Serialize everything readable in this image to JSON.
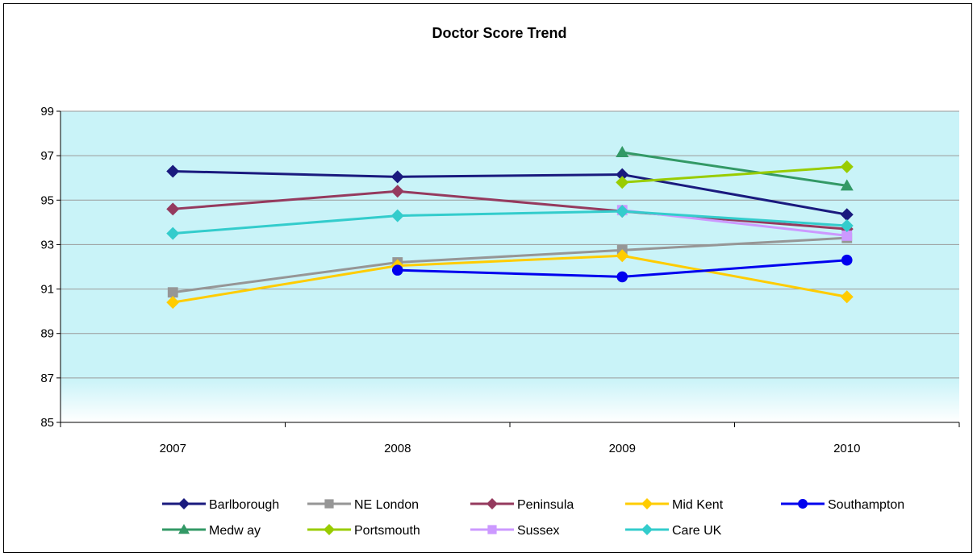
{
  "chart_data": {
    "type": "line",
    "title": "Doctor Score Trend",
    "xlabel": "",
    "ylabel": "",
    "categories": [
      "2007",
      "2008",
      "2009",
      "2010"
    ],
    "ylim": [
      85,
      99
    ],
    "yticks": [
      "85",
      "87",
      "89",
      "91",
      "93",
      "95",
      "97",
      "99"
    ],
    "grid": true,
    "legend_position": "bottom",
    "plot_background": "#c9f3f8",
    "series": [
      {
        "name": "Barlborough",
        "color": "#1a1a7e",
        "marker": "diamond",
        "values": [
          96.3,
          96.05,
          96.15,
          94.35
        ]
      },
      {
        "name": "NE London",
        "color": "#969696",
        "marker": "square",
        "values": [
          90.85,
          92.2,
          92.75,
          93.3
        ]
      },
      {
        "name": "Peninsula",
        "color": "#953a5e",
        "marker": "diamond",
        "values": [
          94.6,
          95.4,
          94.5,
          93.7
        ]
      },
      {
        "name": "Mid Kent",
        "color": "#ffcc00",
        "marker": "diamond",
        "values": [
          90.4,
          92.05,
          92.5,
          90.65
        ]
      },
      {
        "name": "Southampton",
        "color": "#0000ee",
        "marker": "circle",
        "values": [
          null,
          91.85,
          91.55,
          92.3
        ]
      },
      {
        "name": "Medw ay",
        "color": "#339966",
        "marker": "triangle",
        "values": [
          null,
          null,
          97.15,
          95.65
        ]
      },
      {
        "name": "Portsmouth",
        "color": "#99cc00",
        "marker": "diamond",
        "values": [
          null,
          null,
          95.8,
          96.5
        ]
      },
      {
        "name": "Sussex",
        "color": "#cc99ff",
        "marker": "square",
        "values": [
          null,
          null,
          94.55,
          93.4
        ]
      },
      {
        "name": "Care UK",
        "color": "#33cccc",
        "marker": "diamond",
        "values": [
          93.5,
          94.3,
          94.5,
          93.85
        ]
      }
    ]
  }
}
